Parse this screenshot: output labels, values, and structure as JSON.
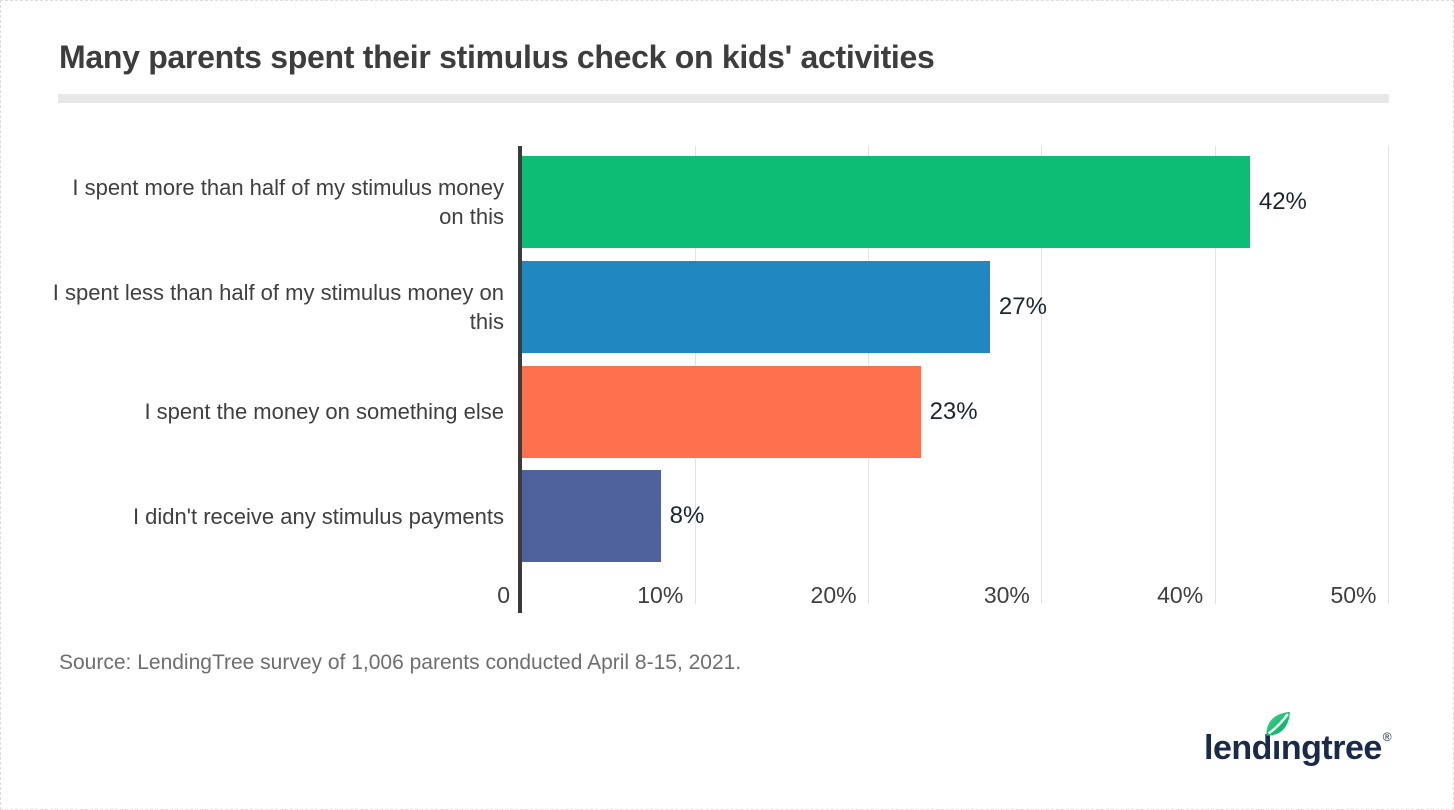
{
  "title": "Many parents spent their stimulus check on kids' activities",
  "source": "Source: LendingTree survey of 1,006 parents conducted April 8-15, 2021.",
  "logo": {
    "part1": "lend",
    "dotless_i": "ı",
    "part2": "ngtree",
    "registered": "®",
    "full_name": "lendingtree",
    "navy": "#1a2b49",
    "leaf_green_light": "#45d98e",
    "leaf_green_dark": "#00a45f"
  },
  "colors": {
    "title_text": "#3d3d3d",
    "label_text": "#3f3f3f",
    "value_text": "#1a2433",
    "source_text": "#6e6e6e",
    "axis_line": "#3b3b3b",
    "gridline": "#e3e3e3",
    "divider": "#e8e8e8",
    "background": "#ffffff"
  },
  "chart_data": {
    "type": "bar",
    "orientation": "horizontal",
    "title": "Many parents spent their stimulus check on kids' activities",
    "categories": [
      "I spent more than half of my stimulus money on this",
      "I spent less than half of my stimulus money on this",
      "I spent the money on something else",
      "I didn't receive any stimulus payments"
    ],
    "values": [
      42,
      27,
      23,
      8
    ],
    "value_labels": [
      "42%",
      "27%",
      "23%",
      "8%"
    ],
    "bar_colors": [
      "#0cbd75",
      "#2187c1",
      "#ff714e",
      "#4f629e"
    ],
    "x_axis": {
      "tick_labels": [
        "0",
        "10%",
        "20%",
        "30%",
        "40%",
        "50%"
      ],
      "tick_values": [
        0,
        10,
        20,
        30,
        40,
        50
      ],
      "min": 0,
      "max": 53,
      "grid": true
    },
    "legend_position": "none",
    "data_labels": "outside-end"
  }
}
